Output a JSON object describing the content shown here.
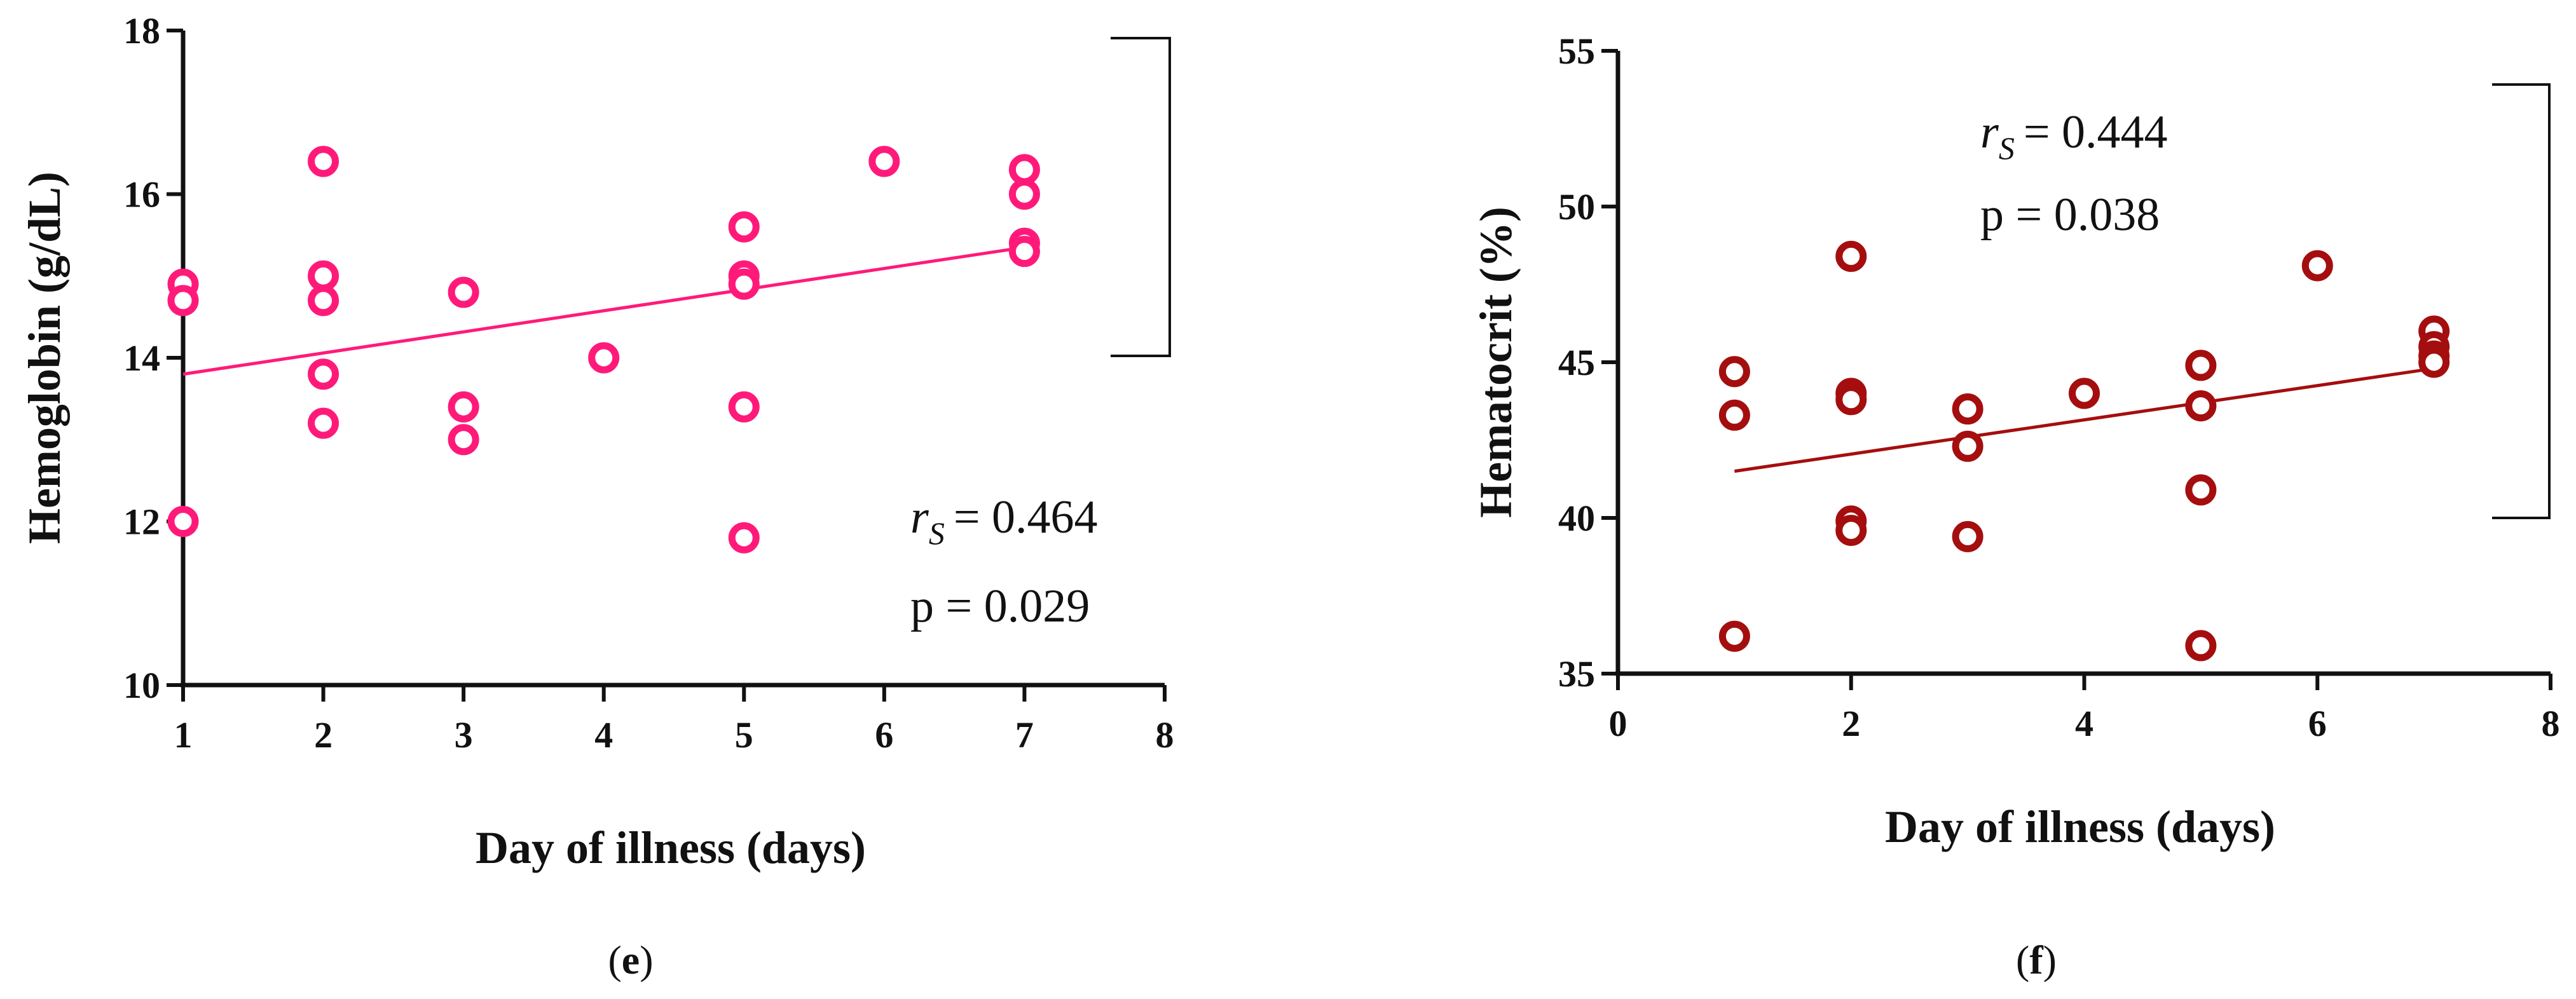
{
  "chart_data": [
    {
      "panel": "e",
      "type": "scatter",
      "caption_letter": "e",
      "xlabel": "Day of illness (days)",
      "ylabel": "Hemoglobin (g/dL)",
      "xlim": [
        1,
        8
      ],
      "ylim": [
        10,
        18
      ],
      "xticks": [
        1,
        2,
        3,
        4,
        5,
        6,
        7,
        8
      ],
      "yticks": [
        10,
        12,
        14,
        16,
        18
      ],
      "color": "#ff1a7a",
      "points": [
        [
          1,
          14.9
        ],
        [
          1,
          14.7
        ],
        [
          1,
          12.0
        ],
        [
          2,
          16.4
        ],
        [
          2,
          15.0
        ],
        [
          2,
          14.7
        ],
        [
          2,
          13.8
        ],
        [
          2,
          13.2
        ],
        [
          3,
          14.8
        ],
        [
          3,
          13.4
        ],
        [
          3,
          13.0
        ],
        [
          4,
          14.0
        ],
        [
          5,
          15.6
        ],
        [
          5,
          15.0
        ],
        [
          5,
          14.9
        ],
        [
          5,
          13.4
        ],
        [
          5,
          11.8
        ],
        [
          6,
          16.4
        ],
        [
          7,
          16.3
        ],
        [
          7,
          16.0
        ],
        [
          7,
          15.4
        ],
        [
          7,
          15.3
        ]
      ],
      "fit_line": [
        [
          1,
          13.8
        ],
        [
          7,
          15.35
        ]
      ],
      "stat_rs_symbol": "r",
      "stat_rs_sub": "S",
      "stat_rs_value": "= 0.464",
      "stat_p": "p = 0.029"
    },
    {
      "panel": "f",
      "type": "scatter",
      "caption_letter": "f",
      "xlabel": "Day of illness (days)",
      "ylabel": "Hematocrit (%)",
      "xlim": [
        0,
        8
      ],
      "ylim": [
        35,
        55
      ],
      "xticks": [
        0,
        2,
        4,
        6,
        8
      ],
      "yticks": [
        35,
        40,
        45,
        50,
        55
      ],
      "color": "#a50e0e",
      "points": [
        [
          1,
          44.7
        ],
        [
          1,
          43.3
        ],
        [
          1,
          36.2
        ],
        [
          2,
          48.4
        ],
        [
          2,
          44.0
        ],
        [
          2,
          43.8
        ],
        [
          2,
          39.9
        ],
        [
          2,
          39.6
        ],
        [
          3,
          43.5
        ],
        [
          3,
          42.3
        ],
        [
          3,
          39.4
        ],
        [
          4,
          44.0
        ],
        [
          5,
          44.9
        ],
        [
          5,
          43.6
        ],
        [
          5,
          40.9
        ],
        [
          5,
          35.9
        ],
        [
          6,
          48.1
        ],
        [
          7,
          46.0
        ],
        [
          7,
          45.5
        ],
        [
          7,
          45.2
        ],
        [
          7,
          45.0
        ]
      ],
      "fit_line": [
        [
          1,
          41.5
        ],
        [
          7,
          44.8
        ]
      ],
      "stat_rs_symbol": "r",
      "stat_rs_sub": "S",
      "stat_rs_value": "= 0.444",
      "stat_p": "p = 0.038"
    }
  ]
}
